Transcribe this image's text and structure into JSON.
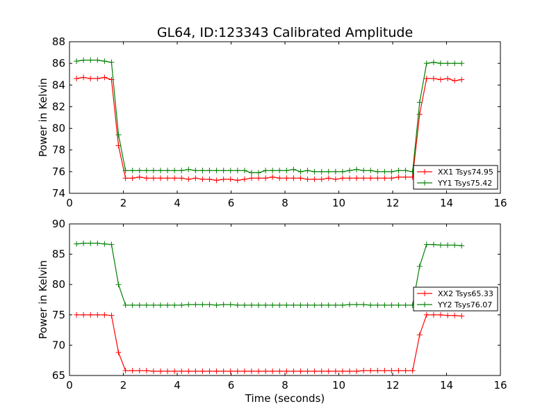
{
  "figure": {
    "title": "GL64, ID:123343 Calibrated Amplitude"
  },
  "chart_data": [
    {
      "type": "line",
      "title": "GL64, ID:123343 Calibrated Amplitude",
      "xlabel": "",
      "ylabel": "Power in Kelvin",
      "xlim": [
        0,
        16
      ],
      "ylim": [
        74,
        88
      ],
      "xticks": [
        "0",
        "2",
        "4",
        "6",
        "8",
        "10",
        "12",
        "14",
        "16"
      ],
      "yticks": [
        "74",
        "76",
        "78",
        "80",
        "82",
        "84",
        "86",
        "88"
      ],
      "legend_position": "lower-right",
      "x": [
        0.26,
        0.52,
        0.78,
        1.04,
        1.3,
        1.56,
        1.82,
        2.08,
        2.34,
        2.6,
        2.86,
        3.12,
        3.38,
        3.64,
        3.9,
        4.16,
        4.42,
        4.68,
        4.94,
        5.2,
        5.46,
        5.72,
        5.98,
        6.24,
        6.5,
        6.76,
        7.02,
        7.28,
        7.54,
        7.8,
        8.06,
        8.32,
        8.58,
        8.84,
        9.1,
        9.36,
        9.62,
        9.88,
        10.14,
        10.4,
        10.66,
        10.92,
        11.18,
        11.44,
        11.7,
        11.96,
        12.22,
        12.48,
        12.74,
        13.0,
        13.26,
        13.52,
        13.78,
        14.04,
        14.3,
        14.56
      ],
      "series": [
        {
          "name": "XX1 Tsys74.95",
          "color": "#ff0000",
          "values": [
            84.6,
            84.7,
            84.6,
            84.6,
            84.7,
            84.5,
            78.4,
            75.4,
            75.4,
            75.5,
            75.4,
            75.4,
            75.4,
            75.4,
            75.4,
            75.4,
            75.3,
            75.4,
            75.3,
            75.3,
            75.2,
            75.3,
            75.3,
            75.2,
            75.3,
            75.4,
            75.4,
            75.4,
            75.5,
            75.4,
            75.4,
            75.4,
            75.4,
            75.3,
            75.3,
            75.3,
            75.4,
            75.3,
            75.4,
            75.4,
            75.4,
            75.4,
            75.4,
            75.4,
            75.4,
            75.4,
            75.5,
            75.5,
            75.5,
            81.3,
            84.6,
            84.6,
            84.5,
            84.6,
            84.4,
            84.5
          ]
        },
        {
          "name": "YY1 Tsys75.42",
          "color": "#008000",
          "values": [
            86.2,
            86.3,
            86.3,
            86.3,
            86.2,
            86.1,
            79.4,
            76.1,
            76.1,
            76.1,
            76.1,
            76.1,
            76.1,
            76.1,
            76.1,
            76.1,
            76.2,
            76.1,
            76.1,
            76.1,
            76.1,
            76.1,
            76.1,
            76.1,
            76.1,
            75.9,
            75.9,
            76.1,
            76.1,
            76.1,
            76.1,
            76.2,
            76.0,
            76.1,
            76.0,
            76.0,
            76.0,
            76.0,
            76.0,
            76.1,
            76.2,
            76.1,
            76.1,
            76.0,
            76.0,
            76.0,
            76.1,
            76.1,
            76.0,
            82.4,
            86.0,
            86.1,
            86.0,
            86.0,
            86.0,
            86.0
          ]
        }
      ]
    },
    {
      "type": "line",
      "title": "",
      "xlabel": "Time (seconds)",
      "ylabel": "Power in Kelvin",
      "xlim": [
        0,
        16
      ],
      "ylim": [
        65,
        90
      ],
      "xticks": [
        "0",
        "2",
        "4",
        "6",
        "8",
        "10",
        "12",
        "14",
        "16"
      ],
      "yticks": [
        "65",
        "70",
        "75",
        "80",
        "85",
        "90"
      ],
      "legend_position": "center-right",
      "x": [
        0.26,
        0.52,
        0.78,
        1.04,
        1.3,
        1.56,
        1.82,
        2.08,
        2.34,
        2.6,
        2.86,
        3.12,
        3.38,
        3.64,
        3.9,
        4.16,
        4.42,
        4.68,
        4.94,
        5.2,
        5.46,
        5.72,
        5.98,
        6.24,
        6.5,
        6.76,
        7.02,
        7.28,
        7.54,
        7.8,
        8.06,
        8.32,
        8.58,
        8.84,
        9.1,
        9.36,
        9.62,
        9.88,
        10.14,
        10.4,
        10.66,
        10.92,
        11.18,
        11.44,
        11.7,
        11.96,
        12.22,
        12.48,
        12.74,
        13.0,
        13.26,
        13.52,
        13.78,
        14.04,
        14.3,
        14.56
      ],
      "series": [
        {
          "name": "XX2 Tsys65.33",
          "color": "#ff0000",
          "values": [
            75.0,
            75.0,
            75.0,
            75.0,
            75.0,
            74.9,
            68.8,
            65.8,
            65.8,
            65.8,
            65.8,
            65.7,
            65.7,
            65.7,
            65.7,
            65.7,
            65.7,
            65.7,
            65.7,
            65.7,
            65.7,
            65.7,
            65.7,
            65.7,
            65.7,
            65.7,
            65.7,
            65.7,
            65.7,
            65.7,
            65.7,
            65.7,
            65.7,
            65.7,
            65.7,
            65.7,
            65.7,
            65.7,
            65.7,
            65.7,
            65.7,
            65.8,
            65.8,
            65.8,
            65.8,
            65.8,
            65.8,
            65.8,
            65.8,
            71.7,
            75.0,
            75.0,
            75.0,
            74.9,
            74.9,
            74.8
          ]
        },
        {
          "name": "YY2 Tsys76.07",
          "color": "#008000",
          "values": [
            86.7,
            86.8,
            86.8,
            86.8,
            86.7,
            86.6,
            80.0,
            76.6,
            76.6,
            76.6,
            76.6,
            76.6,
            76.6,
            76.6,
            76.6,
            76.6,
            76.7,
            76.7,
            76.7,
            76.7,
            76.6,
            76.7,
            76.7,
            76.6,
            76.6,
            76.6,
            76.6,
            76.6,
            76.6,
            76.6,
            76.6,
            76.6,
            76.6,
            76.6,
            76.6,
            76.6,
            76.6,
            76.6,
            76.6,
            76.7,
            76.7,
            76.7,
            76.6,
            76.6,
            76.6,
            76.6,
            76.6,
            76.6,
            76.6,
            83.0,
            86.6,
            86.6,
            86.5,
            86.5,
            86.5,
            86.4
          ]
        }
      ]
    }
  ]
}
